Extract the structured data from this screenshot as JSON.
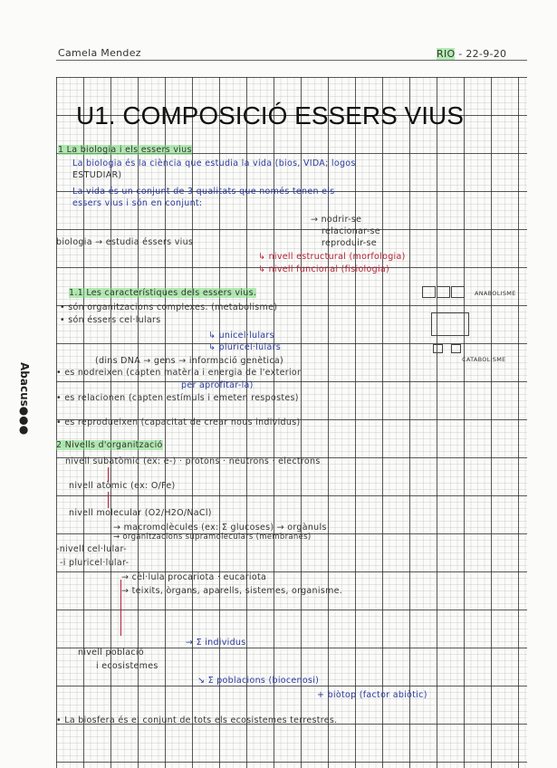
{
  "header": {
    "name": "Camela Mendez",
    "subject": "RIO",
    "date": "22-9-20"
  },
  "brand": "Abacus●●●",
  "title": "U1. COMPOSICIÓ ESSERS VIUS",
  "section1": {
    "heading": "1 La biologia i els essers vius",
    "lines": [
      "La biologia és la ciència que estudia la vida (bios, VIDA; logos",
      "ESTUDIAR)",
      "La vida és un conjunt de 3 qualitats que només tenen els",
      "essers vius i són en conjunt:"
    ],
    "qualities": [
      "→ nodrir-se",
      "relacionar-se",
      "reproduir-se"
    ],
    "biologia": "biologia → estudia éssers vius",
    "levels": [
      "↳ nivell estructural (morfologia)",
      "↳ nivell funcional (fisiologia)"
    ]
  },
  "section11": {
    "heading": "1.1 Les característiques dels essers vius.",
    "items": [
      "• són organitzacions complexes. (metabolisme)",
      "• són éssers cel·lulars",
      "↳ unicel·lulars",
      "↳ pluricel·lulars",
      "(dins DNA → gens → informació genètica)",
      "• es nodreixen (capten matèria i energia de l'exterior",
      "per aprofitar-la)",
      "• es relacionen (capten estímuls i emeten respostes)",
      "• es reprodueixen (capacitat de crear nous individus)"
    ],
    "side_labels": [
      "ANABOLISME",
      "CATABOLISME"
    ]
  },
  "section2": {
    "heading": "2 Nivells d'organització",
    "lines": [
      "nivell subatòmic (ex: e-) · protons · neutrons · electrons",
      "nivell atòmic (ex: O/Fe)",
      "nivell molecular (O2/H2O/NaCl)",
      "→ macromolècules (ex: Σ glucoses) → orgànuls",
      "→ organitzacions supramoleculars (membranes)",
      "-nivell cel·lular-",
      "-i pluricel·lular-",
      "→ cèl·lula procariota · eucariota",
      "→ teixits, òrgans, aparells, sistemes, organisme.",
      "→ Σ individus",
      "nivell població",
      "i ecosistemes",
      "↘ Σ poblacions (biocenosi)",
      "+ biòtop (factor abiòtic)",
      "• La biosfera és el conjunt de tots els ecosistemes terrestres."
    ]
  }
}
